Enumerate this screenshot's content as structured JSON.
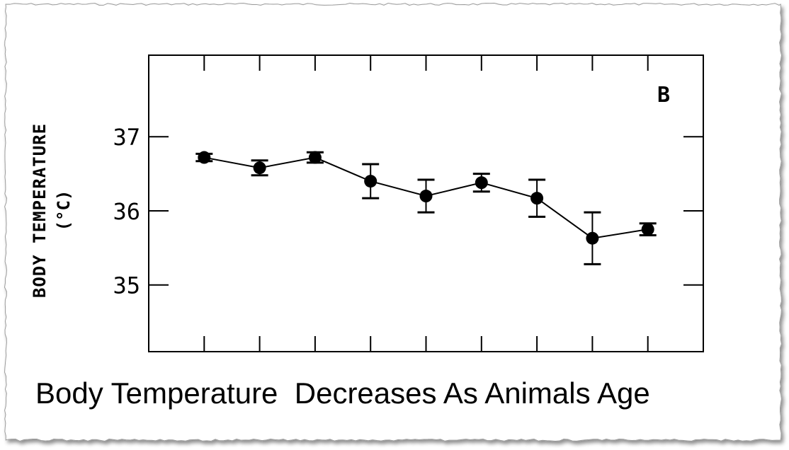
{
  "caption": "Body Temperature  Decreases As Animals Age",
  "chart_data": {
    "type": "line",
    "panel_label": "B",
    "ylabel": "BODY TEMPERATURE",
    "yunit": "(°C)",
    "xlabel": "",
    "yticks": [
      35,
      36,
      37
    ],
    "ytick_labels": [
      "35",
      "36",
      "37"
    ],
    "ylim": [
      34.1,
      38.1
    ],
    "xlim": [
      0,
      10
    ],
    "grid": false,
    "x": [
      1,
      2,
      3,
      4,
      5,
      6,
      7,
      8,
      9
    ],
    "series": [
      {
        "values": [
          36.72,
          36.58,
          36.72,
          36.4,
          36.2,
          36.38,
          36.17,
          35.63,
          35.75
        ],
        "errors": [
          0.05,
          0.1,
          0.07,
          0.23,
          0.22,
          0.12,
          0.25,
          0.35,
          0.08
        ]
      }
    ]
  },
  "colors": {
    "ink": "#000000",
    "paper": "#ffffff",
    "frame_shadow": "#8a8a8a"
  }
}
